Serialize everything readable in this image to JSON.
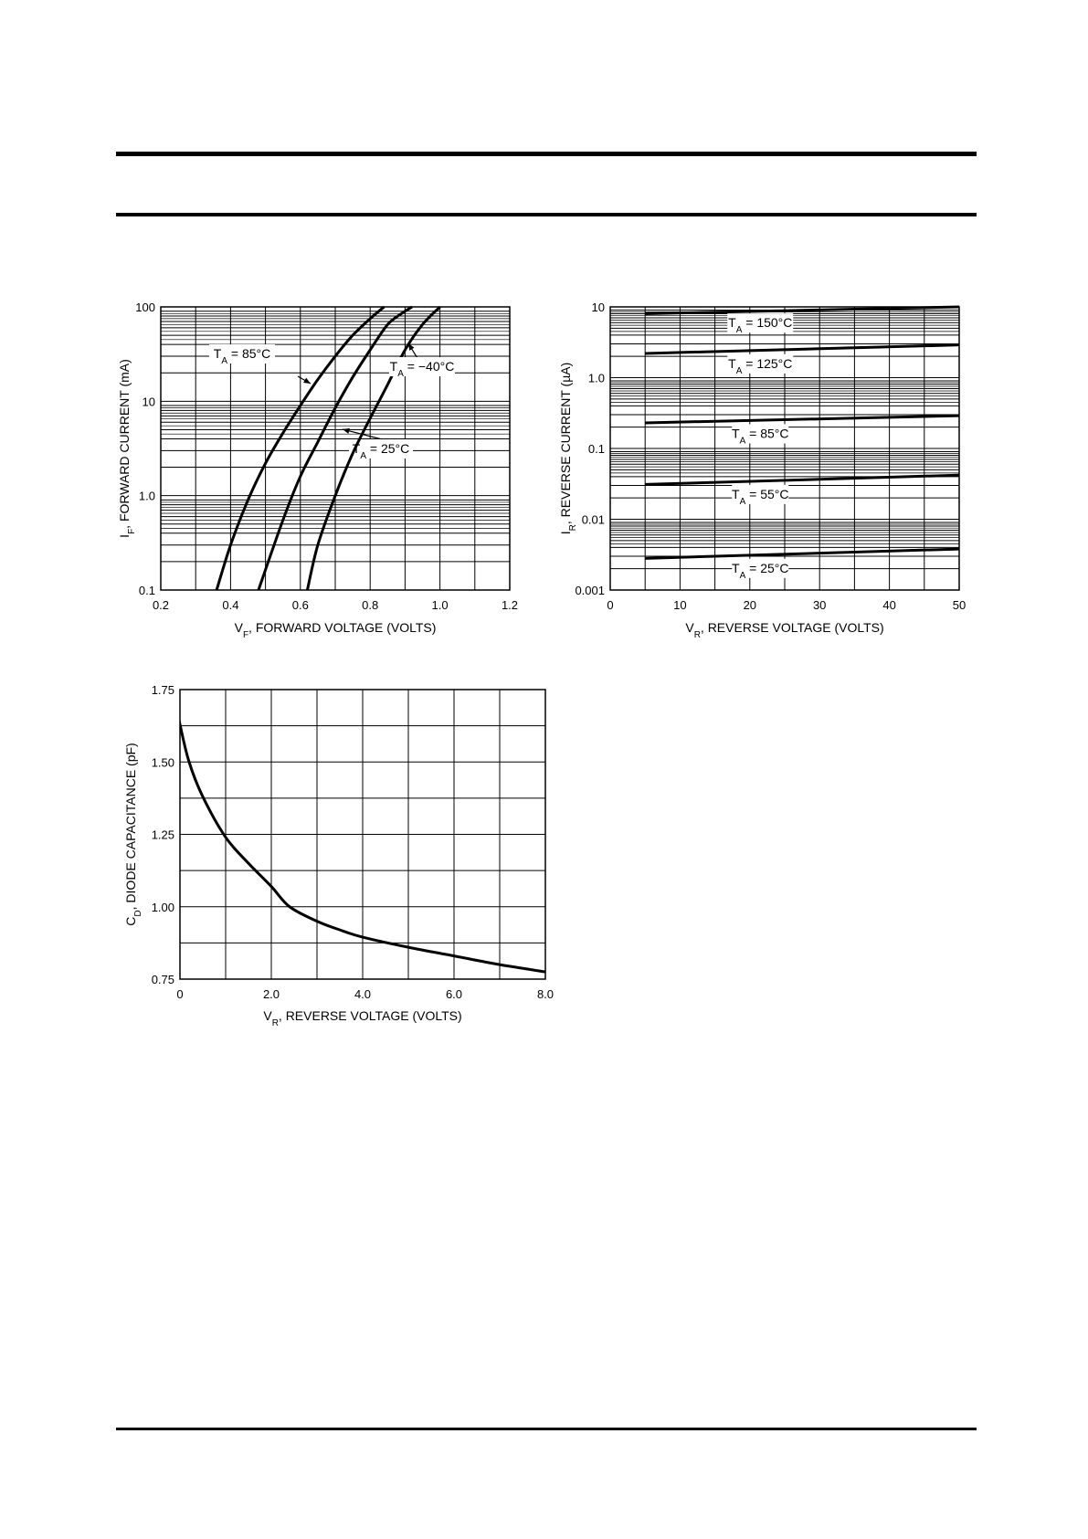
{
  "chart_data": [
    {
      "type": "line",
      "xlabel_main": "V",
      "xlabel_sub": "F",
      "xlabel_rest": ", FORWARD VOLTAGE (VOLTS)",
      "ylabel_main": "I",
      "ylabel_sub": "F",
      "ylabel_rest": ", FORWARD CURRENT (mA)",
      "xlim": [
        0.2,
        1.2
      ],
      "ylim": [
        0.1,
        100
      ],
      "yscale": "log",
      "grid": true,
      "xticks": [
        "0.2",
        "0.4",
        "0.6",
        "0.8",
        "1.0",
        "1.2"
      ],
      "yticks": [
        "0.1",
        "1.0",
        "10",
        "100"
      ],
      "series": [
        {
          "name": "T_A = 85°C",
          "label_main": "T",
          "label_sub": "A",
          "label_rest": " = 85°C",
          "x": [
            0.36,
            0.4,
            0.45,
            0.5,
            0.55,
            0.6,
            0.65,
            0.7,
            0.75,
            0.8,
            0.84
          ],
          "y": [
            0.1,
            0.3,
            0.9,
            2.2,
            4.6,
            9.0,
            17,
            30,
            50,
            75,
            100
          ]
        },
        {
          "name": "T_A = 25°C",
          "label_main": "T",
          "label_sub": "A",
          "label_rest": " = 25°C",
          "x": [
            0.48,
            0.55,
            0.6,
            0.65,
            0.7,
            0.75,
            0.8,
            0.85,
            0.89,
            0.92
          ],
          "y": [
            0.1,
            0.55,
            1.6,
            3.7,
            8.5,
            18,
            35,
            65,
            85,
            100
          ]
        },
        {
          "name": "T_A = −40°C",
          "label_main": "T",
          "label_sub": "A",
          "label_rest": " = −40°C",
          "x": [
            0.62,
            0.65,
            0.7,
            0.75,
            0.8,
            0.85,
            0.9,
            0.95,
            1.0
          ],
          "y": [
            0.1,
            0.3,
            1.0,
            2.8,
            6.6,
            15,
            35,
            65,
            100
          ]
        }
      ]
    },
    {
      "type": "line",
      "xlabel_main": "V",
      "xlabel_sub": "R",
      "xlabel_rest": ", REVERSE VOLTAGE (VOLTS)",
      "ylabel_main": "I",
      "ylabel_sub": "R",
      "ylabel_rest": ", REVERSE CURRENT (µA)",
      "xlim": [
        0,
        50
      ],
      "ylim": [
        0.001,
        10
      ],
      "yscale": "log",
      "grid": true,
      "xticks": [
        "0",
        "10",
        "20",
        "30",
        "40",
        "50"
      ],
      "yticks": [
        "0.001",
        "0.01",
        "0.1",
        "1.0",
        "10"
      ],
      "series": [
        {
          "name": "T_A = 150°C",
          "label_main": "T",
          "label_sub": "A",
          "label_rest": " = 150°C",
          "x": [
            5,
            50
          ],
          "y": [
            8.0,
            10.0
          ]
        },
        {
          "name": "T_A = 125°C",
          "label_main": "T",
          "label_sub": "A",
          "label_rest": " = 125°C",
          "x": [
            5,
            50
          ],
          "y": [
            2.2,
            2.9
          ]
        },
        {
          "name": "T_A = 85°C",
          "label_main": "T",
          "label_sub": "A",
          "label_rest": " = 85°C",
          "x": [
            5,
            50
          ],
          "y": [
            0.23,
            0.29
          ]
        },
        {
          "name": "T_A = 55°C",
          "label_main": "T",
          "label_sub": "A",
          "label_rest": " = 55°C",
          "x": [
            5,
            50
          ],
          "y": [
            0.031,
            0.042
          ]
        },
        {
          "name": "T_A = 25°C",
          "label_main": "T",
          "label_sub": "A",
          "label_rest": " = 25°C",
          "x": [
            5,
            50
          ],
          "y": [
            0.0028,
            0.0038
          ]
        }
      ]
    },
    {
      "type": "line",
      "xlabel_main": "V",
      "xlabel_sub": "R",
      "xlabel_rest": ", REVERSE VOLTAGE (VOLTS)",
      "ylabel_main": "C",
      "ylabel_sub": "D",
      "ylabel_rest": ", DIODE CAPACITANCE (pF)",
      "xlim": [
        0,
        8
      ],
      "ylim": [
        0.75,
        1.75
      ],
      "yscale": "linear",
      "grid": true,
      "xticks": [
        "0",
        "2.0",
        "4.0",
        "6.0",
        "8.0"
      ],
      "yticks": [
        "0.75",
        "1.00",
        "1.25",
        "1.50",
        "1.75"
      ],
      "series": [
        {
          "name": "",
          "x": [
            -0.15,
            0.0,
            0.2,
            0.5,
            1.0,
            1.5,
            2.0,
            2.4,
            3.0,
            3.5,
            4.0,
            5.0,
            6.0,
            7.0,
            8.0
          ],
          "y": [
            1.75,
            1.63,
            1.5,
            1.38,
            1.24,
            1.15,
            1.07,
            1.0,
            0.95,
            0.92,
            0.895,
            0.86,
            0.83,
            0.8,
            0.775
          ]
        }
      ]
    }
  ]
}
